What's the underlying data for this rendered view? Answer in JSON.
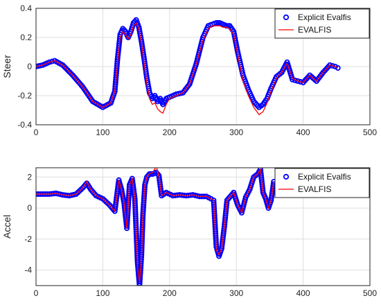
{
  "chart_data": [
    {
      "type": "line",
      "title": "",
      "xlabel": "",
      "ylabel": "Steer",
      "xlim": [
        0,
        500
      ],
      "ylim": [
        -0.4,
        0.4
      ],
      "xticks": [
        "0",
        "100",
        "200",
        "300",
        "400",
        "500"
      ],
      "yticks": [
        "0.4",
        "0.2",
        "0",
        "-0.2",
        "-0.4"
      ],
      "grid": true,
      "legend": "top-right",
      "series": [
        {
          "name": "Explicit Evalfis",
          "style": "circles",
          "color": "#0000ff",
          "x": [
            0,
            10,
            20,
            28,
            40,
            55,
            70,
            85,
            100,
            112,
            118,
            122,
            126,
            130,
            134,
            138,
            142,
            146,
            150,
            154,
            158,
            162,
            166,
            170,
            174,
            178,
            182,
            186,
            190,
            195,
            200,
            210,
            220,
            230,
            240,
            250,
            258,
            264,
            270,
            275,
            280,
            285,
            290,
            296,
            302,
            310,
            318,
            326,
            334,
            340,
            346,
            352,
            360,
            368,
            376,
            384,
            392,
            400,
            410,
            420,
            430,
            440,
            448,
            452
          ],
          "y": [
            0.0,
            0.01,
            0.03,
            0.04,
            0.01,
            -0.06,
            -0.14,
            -0.24,
            -0.28,
            -0.25,
            -0.17,
            0.05,
            0.22,
            0.26,
            0.24,
            0.2,
            0.24,
            0.3,
            0.32,
            0.27,
            0.17,
            0.05,
            -0.08,
            -0.18,
            -0.22,
            -0.2,
            -0.24,
            -0.22,
            -0.26,
            -0.22,
            -0.21,
            -0.19,
            -0.18,
            -0.12,
            0.02,
            0.2,
            0.28,
            0.29,
            0.3,
            0.3,
            0.29,
            0.28,
            0.28,
            0.24,
            0.1,
            -0.06,
            -0.16,
            -0.24,
            -0.28,
            -0.26,
            -0.22,
            -0.15,
            -0.07,
            -0.04,
            0.03,
            -0.09,
            -0.1,
            -0.11,
            -0.06,
            -0.1,
            -0.04,
            0.01,
            0.0,
            -0.01
          ]
        },
        {
          "name": "EVALFIS",
          "style": "line",
          "color": "#ff0000",
          "x": [
            0,
            10,
            20,
            28,
            40,
            55,
            70,
            85,
            100,
            112,
            118,
            122,
            126,
            130,
            134,
            138,
            142,
            146,
            150,
            154,
            158,
            162,
            166,
            170,
            174,
            178,
            182,
            186,
            190,
            195,
            200,
            210,
            220,
            230,
            240,
            250,
            258,
            264,
            270,
            275,
            280,
            285,
            290,
            296,
            302,
            310,
            318,
            326,
            334,
            340,
            346,
            352,
            360,
            368,
            376,
            384,
            392,
            400,
            410,
            420,
            430,
            440,
            448,
            452
          ],
          "y": [
            0.0,
            0.01,
            0.03,
            0.04,
            0.01,
            -0.06,
            -0.14,
            -0.24,
            -0.28,
            -0.25,
            -0.17,
            0.02,
            0.2,
            0.24,
            0.22,
            0.19,
            0.22,
            0.28,
            0.3,
            0.26,
            0.16,
            0.02,
            -0.12,
            -0.22,
            -0.26,
            -0.25,
            -0.29,
            -0.31,
            -0.32,
            -0.26,
            -0.22,
            -0.2,
            -0.18,
            -0.12,
            0.02,
            0.18,
            0.26,
            0.28,
            0.28,
            0.28,
            0.27,
            0.27,
            0.26,
            0.22,
            0.08,
            -0.1,
            -0.2,
            -0.28,
            -0.33,
            -0.31,
            -0.25,
            -0.17,
            -0.08,
            -0.04,
            0.02,
            -0.08,
            -0.1,
            -0.11,
            -0.06,
            -0.1,
            -0.04,
            0.01,
            0.0,
            -0.01
          ]
        }
      ]
    },
    {
      "type": "line",
      "title": "",
      "xlabel": "",
      "ylabel": "Accel",
      "xlim": [
        0,
        500
      ],
      "ylim": [
        -5,
        2.6
      ],
      "xticks": [
        "0",
        "100",
        "200",
        "300",
        "400",
        "500"
      ],
      "yticks": [
        "2",
        "0",
        "-2",
        "-4"
      ],
      "grid": true,
      "legend": "top-right",
      "series": [
        {
          "name": "Explicit Evalfis",
          "style": "circles",
          "color": "#0000ff",
          "x": [
            0,
            10,
            20,
            30,
            40,
            50,
            60,
            70,
            76,
            82,
            90,
            100,
            110,
            118,
            124,
            128,
            132,
            136,
            140,
            144,
            148,
            152,
            155,
            158,
            160,
            163,
            166,
            170,
            175,
            180,
            184,
            188,
            195,
            205,
            215,
            225,
            235,
            245,
            255,
            262,
            266,
            270,
            274,
            278,
            282,
            286,
            290,
            296,
            302,
            308,
            314,
            320,
            326,
            332,
            336,
            340,
            344,
            348,
            352,
            356
          ],
          "y": [
            0.9,
            0.9,
            0.9,
            0.95,
            0.85,
            0.8,
            0.9,
            1.3,
            1.6,
            1.2,
            0.8,
            0.6,
            0.2,
            -0.2,
            1.8,
            1.2,
            0.3,
            -1.3,
            1.5,
            1.9,
            0.6,
            -3.5,
            -5.0,
            -3.0,
            -0.5,
            1.5,
            2.0,
            2.2,
            2.2,
            2.3,
            2.1,
            0.8,
            1.0,
            0.8,
            0.85,
            0.8,
            0.85,
            0.75,
            0.75,
            0.6,
            0.5,
            -2.5,
            -3.1,
            -2.6,
            -1.2,
            0.5,
            0.7,
            1.0,
            0.2,
            -0.3,
            0.7,
            1.2,
            2.0,
            2.2,
            2.5,
            1.0,
            0.6,
            0.0,
            0.5,
            1.7
          ]
        },
        {
          "name": "EVALFIS",
          "style": "line",
          "color": "#ff0000",
          "x": [
            0,
            10,
            20,
            30,
            40,
            50,
            60,
            70,
            76,
            82,
            90,
            100,
            110,
            118,
            124,
            128,
            132,
            136,
            140,
            144,
            148,
            152,
            155,
            158,
            160,
            163,
            166,
            170,
            175,
            180,
            184,
            188,
            195,
            205,
            215,
            225,
            235,
            245,
            255,
            262,
            266,
            270,
            274,
            278,
            282,
            286,
            290,
            296,
            302,
            308,
            314,
            320,
            326,
            332,
            336,
            340,
            344,
            348,
            352,
            356
          ],
          "y": [
            0.9,
            0.9,
            0.9,
            0.95,
            0.85,
            0.8,
            0.9,
            1.3,
            1.7,
            1.2,
            0.8,
            0.6,
            0.2,
            -0.2,
            1.8,
            1.2,
            0.3,
            -1.3,
            1.5,
            1.9,
            0.6,
            -3.8,
            -4.8,
            -3.2,
            -0.5,
            1.5,
            2.0,
            2.2,
            2.3,
            2.7,
            2.1,
            0.8,
            1.0,
            0.8,
            0.85,
            0.8,
            0.85,
            0.75,
            0.75,
            0.6,
            0.5,
            -2.7,
            -3.0,
            -2.6,
            -1.2,
            0.5,
            0.7,
            1.0,
            0.2,
            -0.3,
            0.7,
            1.2,
            2.0,
            2.2,
            2.5,
            1.0,
            0.6,
            0.0,
            0.5,
            1.7
          ]
        }
      ]
    }
  ]
}
